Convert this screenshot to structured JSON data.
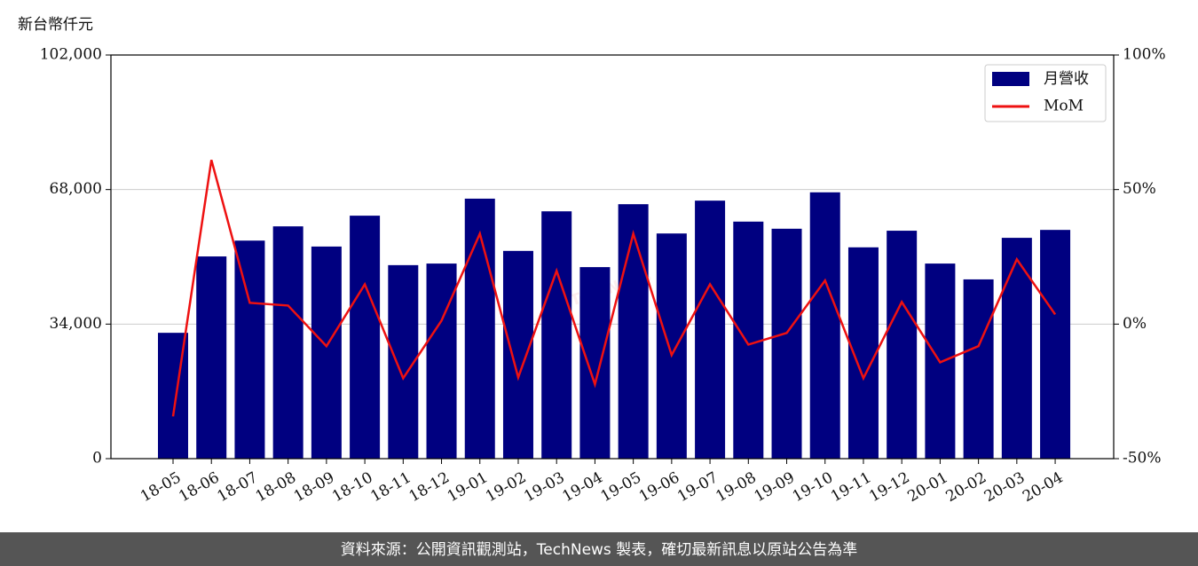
{
  "chart_data": {
    "type": "bar_line",
    "y_axis_label": "新台幣仟元",
    "watermark": "TechNews",
    "footer": "資料來源：公開資訊觀測站，TechNews 製表，確切最新訊息以原站公告為準",
    "categories": [
      "18-05",
      "18-06",
      "18-07",
      "18-08",
      "18-09",
      "18-10",
      "18-11",
      "18-12",
      "19-01",
      "19-02",
      "19-03",
      "19-04",
      "19-05",
      "19-06",
      "19-07",
      "19-08",
      "19-09",
      "19-10",
      "19-11",
      "19-12",
      "20-01",
      "20-02",
      "20-03",
      "20-04"
    ],
    "series": [
      {
        "name": "月營收",
        "color": "#000080",
        "type": "bar",
        "values": [
          31800,
          51100,
          55100,
          58700,
          53600,
          61400,
          48900,
          49300,
          65700,
          52500,
          62500,
          48400,
          64300,
          56900,
          65200,
          59900,
          58100,
          67300,
          53400,
          57600,
          49300,
          45300,
          55800,
          57800
        ]
      },
      {
        "name": "MoM",
        "color": "#ee1111",
        "type": "line",
        "axis": "y2",
        "values": [
          -34.3,
          61,
          7.9,
          6.9,
          -8.2,
          14.8,
          -20.1,
          1.3,
          33.6,
          -19.8,
          19.8,
          -22.4,
          33.6,
          -11.5,
          14.8,
          -7.6,
          -3.3,
          16.2,
          -20.1,
          8.2,
          -14.2,
          -8.2,
          24.1,
          3.6
        ]
      }
    ],
    "ylim": [
      0,
      102000
    ],
    "yticks": [
      0,
      {
        "value": 34000,
        "label": "34,000"
      },
      {
        "value": 68000,
        "label": "68,000"
      },
      {
        "value": 102000,
        "label": "102,000"
      }
    ],
    "y2lim": [
      -50,
      100
    ],
    "y2ticks": [
      {
        "value": -50,
        "label": "-50%"
      },
      {
        "value": 0,
        "label": "0%"
      },
      {
        "value": 50,
        "label": "50%"
      },
      {
        "value": 100,
        "label": "100%"
      }
    ],
    "grid": true,
    "legend": "upper right"
  }
}
